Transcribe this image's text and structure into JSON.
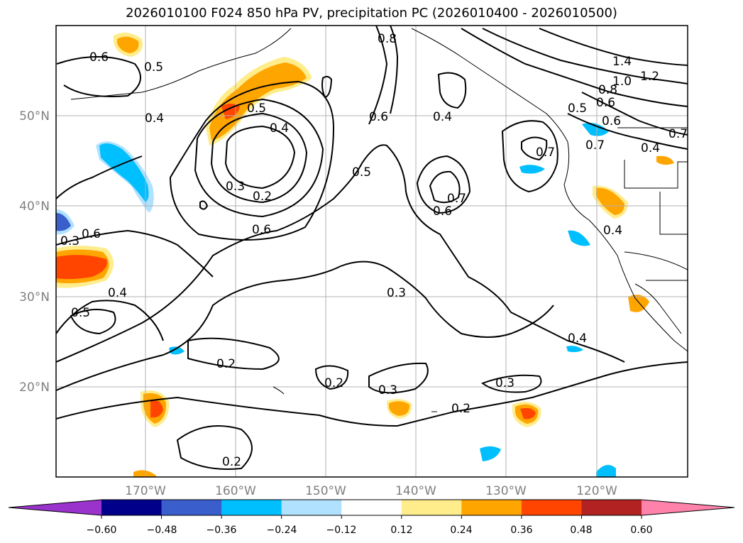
{
  "title": "2026010100 F024 850 hPa PV, precipitation PC (2026010400 - 2026010500)",
  "lat_labels": [
    "50°N",
    "40°N",
    "30°N",
    "20°N"
  ],
  "lon_labels": [
    "170°W",
    "160°W",
    "150°W",
    "140°W",
    "130°W",
    "120°W"
  ],
  "contour_labels": [
    "0.6",
    "0.5",
    "0.4",
    "0.5",
    "0.4",
    "0.3",
    "0.2",
    "0.6",
    "0.8",
    "0.6",
    "0.5",
    "0.4",
    "0.7",
    "0.6",
    "0.7",
    "0.4",
    "1.4",
    "1.0",
    "1.2",
    "0.8",
    "0.6",
    "0.5",
    "0.7",
    "0.4",
    "0.7",
    "0.6",
    "0.6",
    "0.4",
    "0.5",
    "0.3",
    "0.2",
    "0.2",
    "0.3",
    "0.3",
    "0.2",
    "0.4",
    "0.2",
    "0.3"
  ],
  "colorbar": {
    "ticks": [
      "−0.60",
      "−0.48",
      "−0.36",
      "−0.24",
      "−0.12",
      "0.12",
      "0.24",
      "0.36",
      "0.48",
      "0.60"
    ],
    "colors": [
      "#9933cc",
      "#00008b",
      "#3a5fcd",
      "#00bfff",
      "#b0e2ff",
      "#ffffff",
      "#ffec8b",
      "#ffa500",
      "#ff4500",
      "#b22222",
      "#ff82ab"
    ]
  }
}
